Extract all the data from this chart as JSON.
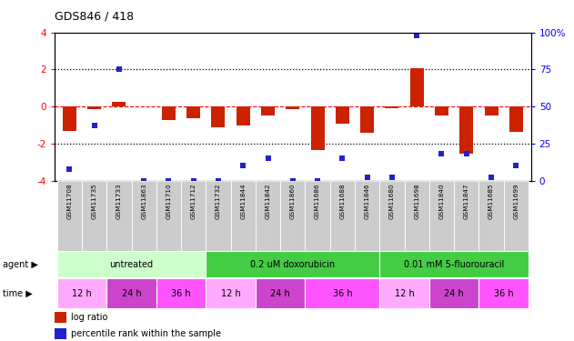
{
  "title": "GDS846 / 418",
  "samples": [
    "GSM11708",
    "GSM11735",
    "GSM11733",
    "GSM11863",
    "GSM11710",
    "GSM11712",
    "GSM11732",
    "GSM11844",
    "GSM11842",
    "GSM11860",
    "GSM11686",
    "GSM11688",
    "GSM11846",
    "GSM11680",
    "GSM11698",
    "GSM11840",
    "GSM11847",
    "GSM11685",
    "GSM11699"
  ],
  "log_ratio": [
    -1.3,
    -0.15,
    0.25,
    0.0,
    -0.75,
    -0.65,
    -1.1,
    -1.0,
    -0.5,
    -0.15,
    -2.35,
    -0.9,
    -1.4,
    -0.1,
    2.05,
    -0.5,
    -2.55,
    -0.5,
    -1.35
  ],
  "percentile": [
    8,
    37,
    75,
    0,
    0,
    0,
    0,
    10,
    15,
    0,
    0,
    15,
    2,
    2,
    98,
    18,
    18,
    2,
    10
  ],
  "bar_color": "#cc2200",
  "dot_color": "#2222cc",
  "ylim_left": [
    -4,
    4
  ],
  "ylim_right": [
    0,
    100
  ],
  "yticks_left": [
    -4,
    -2,
    0,
    2,
    4
  ],
  "yticks_right": [
    0,
    25,
    50,
    75,
    100
  ],
  "ytick_labels_right": [
    "0",
    "25",
    "50",
    "75",
    "100%"
  ],
  "agent_groups": [
    {
      "label": "untreated",
      "start": 0,
      "end": 5,
      "color": "#ccffcc"
    },
    {
      "label": "0.2 uM doxorubicin",
      "start": 6,
      "end": 12,
      "color": "#44cc44"
    },
    {
      "label": "0.01 mM 5-fluorouracil",
      "start": 13,
      "end": 18,
      "color": "#44cc44"
    }
  ],
  "time_groups": [
    {
      "label": "12 h",
      "start": 0,
      "end": 1,
      "color": "#ffaaff"
    },
    {
      "label": "24 h",
      "start": 2,
      "end": 3,
      "color": "#cc44cc"
    },
    {
      "label": "36 h",
      "start": 4,
      "end": 5,
      "color": "#ff55ff"
    },
    {
      "label": "12 h",
      "start": 6,
      "end": 7,
      "color": "#ffaaff"
    },
    {
      "label": "24 h",
      "start": 8,
      "end": 9,
      "color": "#cc44cc"
    },
    {
      "label": "36 h",
      "start": 10,
      "end": 12,
      "color": "#ff55ff"
    },
    {
      "label": "12 h",
      "start": 13,
      "end": 14,
      "color": "#ffaaff"
    },
    {
      "label": "24 h",
      "start": 15,
      "end": 16,
      "color": "#cc44cc"
    },
    {
      "label": "36 h",
      "start": 17,
      "end": 18,
      "color": "#ff55ff"
    }
  ],
  "sample_label_bg": "#cccccc",
  "legend_bar_color": "#cc2200",
  "legend_dot_color": "#2222cc"
}
